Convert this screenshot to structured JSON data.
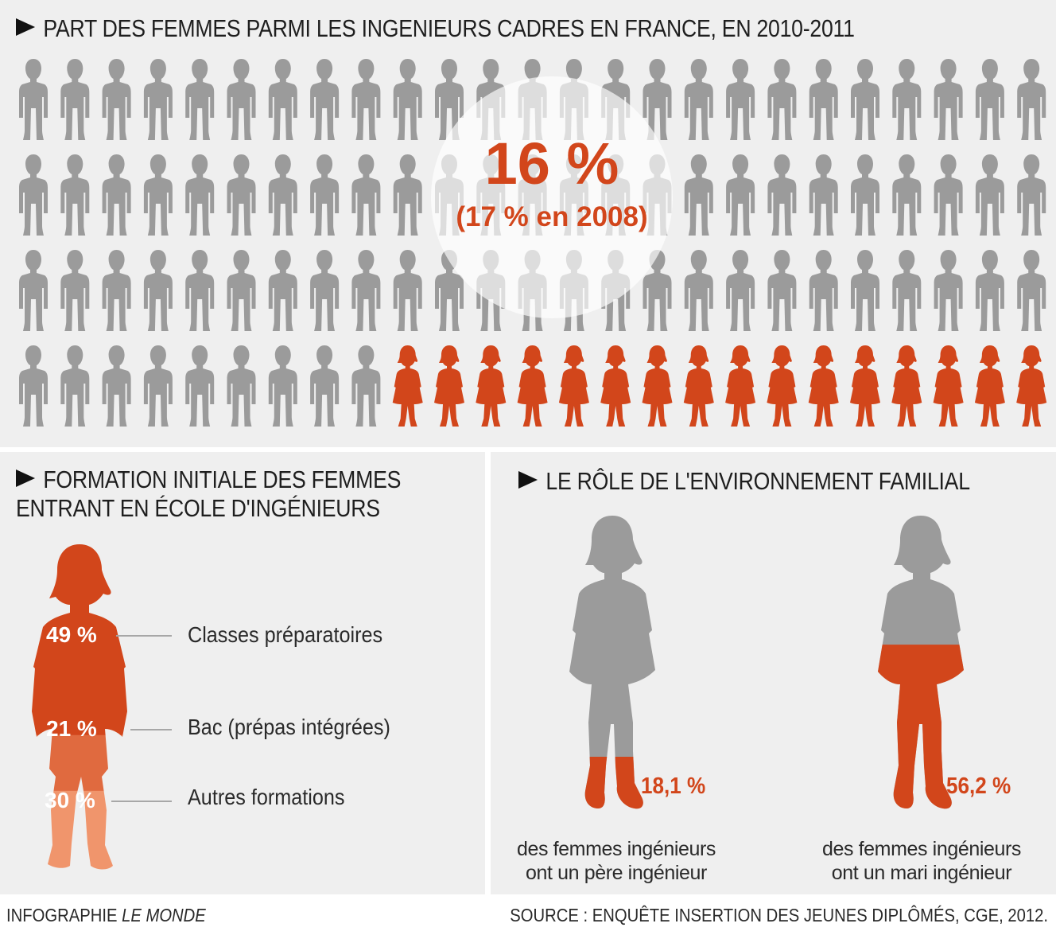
{
  "top": {
    "title": "PART DES FEMMES PARMI LES INGENIEURS CADRES EN FRANCE, EN 2010-2011",
    "main_value": "16 %",
    "sub_value": "(17 % en 2008)"
  },
  "left": {
    "title_line1": "FORMATION INITIALE DES FEMMES",
    "title_line2": "ENTRANT EN ÉCOLE D'INGÉNIEURS",
    "segments": [
      {
        "value": "49 %",
        "label": "Classes préparatoires"
      },
      {
        "value": "21 %",
        "label": "Bac (prépas intégrées)"
      },
      {
        "value": "30 %",
        "label": "Autres formations"
      }
    ]
  },
  "right": {
    "title": "LE RÔLE DE L'ENVIRONNEMENT FAMILIAL",
    "items": [
      {
        "value": "18,1 %",
        "caption_line1": "des femmes ingénieurs",
        "caption_line2": "ont un père ingénieur"
      },
      {
        "value": "56,2 %",
        "caption_line1": "des femmes ingénieurs",
        "caption_line2": "ont un mari ingénieur"
      }
    ]
  },
  "footer": {
    "credit_prefix": "INFOGRAPHIE ",
    "credit_brand": "LE MONDE",
    "source": "SOURCE : ENQUÊTE INSERTION DES JEUNES DIPLÔMÉS, CGE, 2012."
  },
  "colors": {
    "orange": "#d2461b",
    "orange_mid": "#e06a3f",
    "orange_light": "#f0956c",
    "gray": "#9b9b9b",
    "panel": "#efefef"
  },
  "chart_data": [
    {
      "type": "pictogram",
      "title": "PART DES FEMMES PARMI LES INGENIEURS CADRES EN FRANCE, EN 2010-2011",
      "total_icons": 100,
      "highlighted_icons": 16,
      "values": [
        16,
        84
      ],
      "categories": [
        "femmes",
        "hommes"
      ],
      "annotations": [
        "16 %",
        "(17 % en 2008)"
      ]
    },
    {
      "type": "stacked-bar",
      "title": "FORMATION INITIALE DES FEMMES ENTRANT EN ÉCOLE D'INGÉNIEURS",
      "categories": [
        "Classes préparatoires",
        "Bac (prépas intégrées)",
        "Autres formations"
      ],
      "values": [
        49,
        21,
        30
      ]
    },
    {
      "type": "bar",
      "title": "LE RÔLE DE L'ENVIRONNEMENT FAMILIAL",
      "categories": [
        "des femmes ingénieurs ont un père ingénieur",
        "des femmes ingénieurs ont un mari ingénieur"
      ],
      "values": [
        18.1,
        56.2
      ]
    }
  ]
}
